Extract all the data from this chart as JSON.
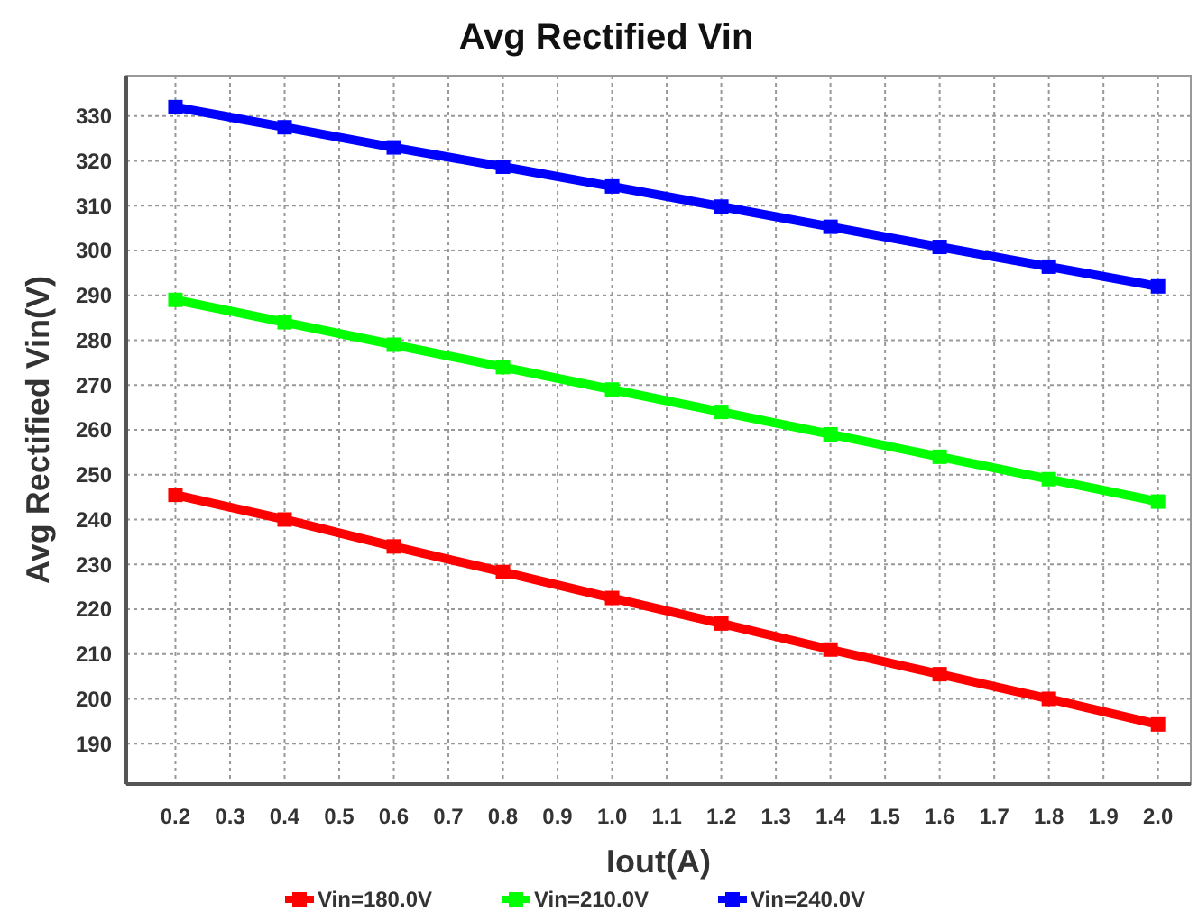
{
  "chart_data": {
    "type": "line",
    "title": "Avg Rectified Vin",
    "xlabel": "Iout(A)",
    "ylabel": "Avg Rectified Vin(V)",
    "x": [
      0.2,
      0.4,
      0.6,
      0.8,
      1.0,
      1.2,
      1.4,
      1.6,
      1.8,
      2.0
    ],
    "series": [
      {
        "name": "Vin=180.0V",
        "color": "#ff0000",
        "values": [
          245.5,
          240,
          234,
          228.3,
          222.5,
          216.8,
          211,
          205.5,
          200,
          194.3
        ]
      },
      {
        "name": "Vin=210.0V",
        "color": "#00ff00",
        "values": [
          289,
          284,
          279,
          274,
          269,
          264,
          259,
          254,
          249,
          244
        ]
      },
      {
        "name": "Vin=240.0V",
        "color": "#0000ff",
        "values": [
          332,
          327.5,
          323,
          318.7,
          314.3,
          309.8,
          305.3,
          300.8,
          296.4,
          292
        ]
      }
    ],
    "xlim": [
      0.11,
      2.06
    ],
    "ylim": [
      181,
      339
    ],
    "xticks": [
      0.2,
      0.3,
      0.4,
      0.5,
      0.6,
      0.7,
      0.8,
      0.9,
      {
        "value": 1,
        "label": "1.0"
      },
      1.1,
      1.2,
      1.3,
      1.4,
      1.5,
      1.6,
      1.7,
      1.8,
      1.9,
      {
        "value": 2,
        "label": "2.0"
      }
    ],
    "yticks": [
      190,
      200,
      210,
      220,
      230,
      240,
      250,
      260,
      270,
      280,
      290,
      300,
      310,
      320,
      330
    ],
    "grid": true,
    "legend": "bottom",
    "marker": "square",
    "line_style": "solid"
  }
}
